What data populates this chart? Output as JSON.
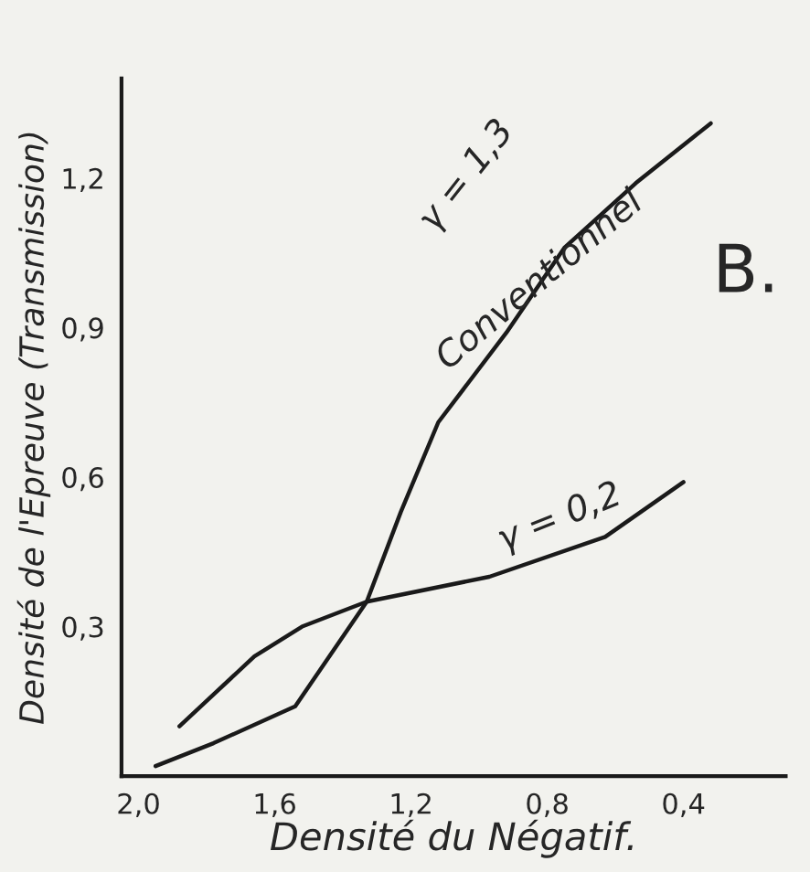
{
  "chart_data": {
    "type": "line",
    "xlabel": "Densité du Négatif.",
    "ylabel": "Densité de l'Epreuve (Transmission)",
    "series": [
      {
        "color": "#1a1a1a",
        "x": [
          1.95,
          1.78,
          1.54,
          1.33,
          1.23,
          1.12,
          0.92,
          0.75,
          0.54,
          0.32
        ],
        "values": [
          0.02,
          0.066,
          0.14,
          0.35,
          0.53,
          0.71,
          0.89,
          1.06,
          1.19,
          1.31
        ]
      },
      {
        "color": "#1a1a1a",
        "x": [
          1.88,
          1.66,
          1.52,
          1.33,
          0.97,
          0.63,
          0.4
        ],
        "values": [
          0.1,
          0.24,
          0.3,
          0.35,
          0.4,
          0.48,
          0.59
        ]
      }
    ],
    "annotations": [
      "γ = 1,3",
      "Conventionnel",
      "γ = 0,2",
      "B."
    ],
    "xlim": [
      2.05,
      0.1
    ],
    "ylim": [
      0,
      1.4
    ],
    "xticks": [
      {
        "value": 2.0,
        "label": "2,0"
      },
      {
        "value": 1.6,
        "label": "1,6"
      },
      {
        "value": 1.2,
        "label": "1,2"
      },
      {
        "value": 0.8,
        "label": "0,8"
      },
      {
        "value": 0.4,
        "label": "0,4"
      }
    ],
    "yticks": [
      {
        "value": 0.3,
        "label": "0,3"
      },
      {
        "value": 0.6,
        "label": "0,6"
      },
      {
        "value": 0.9,
        "label": "0,9"
      },
      {
        "value": 1.2,
        "label": "1,2"
      }
    ],
    "grid": false,
    "legend": false
  }
}
